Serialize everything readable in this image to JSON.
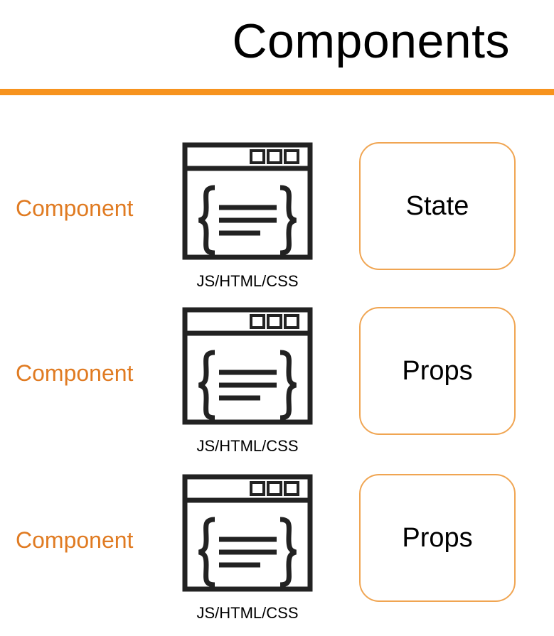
{
  "title": "Components",
  "colors": {
    "accent": "#f7931e",
    "component_label": "#e07b22",
    "box_border": "#f0a552",
    "icon": "#222222"
  },
  "rows": [
    {
      "component_label": "Component",
      "icon": "code-window-icon",
      "file_caption": "JS/HTML/CSS",
      "box_label": "State"
    },
    {
      "component_label": "Component",
      "icon": "code-window-icon",
      "file_caption": "JS/HTML/CSS",
      "box_label": "Props"
    },
    {
      "component_label": "Component",
      "icon": "code-window-icon",
      "file_caption": "JS/HTML/CSS",
      "box_label": "Props"
    }
  ]
}
